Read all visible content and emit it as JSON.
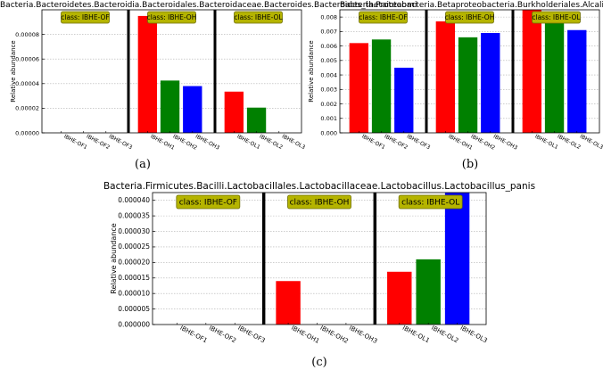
{
  "chart_data": [
    {
      "panel": "(a)",
      "type": "bar",
      "title": "Bacteria.Bacteroidetes.Bacteroidia.Bacteroidales.Bacteroidaceae.Bacteroides.Bacteroides_thetaiotaomi",
      "ylabel": "Relative abundance",
      "ylim": [
        0,
        0.0001
      ],
      "yticks": [
        "0.00000",
        "0.00002",
        "0.00004",
        "0.00006",
        "0.00008"
      ],
      "ytick_values": [
        0,
        2e-05,
        4e-05,
        6e-05,
        8e-05
      ],
      "groups": [
        {
          "label": "class: IBHE-OF",
          "categories": [
            "IBHE-OF1",
            "IBHE-OF2",
            "IBHE-OF3"
          ],
          "values": [
            0,
            0,
            0
          ]
        },
        {
          "label": "class: IBHE-OH",
          "categories": [
            "IBHE-OH1",
            "IBHE-OH2",
            "IBHE-OH3"
          ],
          "values": [
            9.5e-05,
            4.25e-05,
            3.8e-05
          ]
        },
        {
          "label": "class: IBHE-OL",
          "categories": [
            "IBHE-OL1",
            "IBHE-OL2",
            "IBHE-OL3"
          ],
          "values": [
            3.35e-05,
            2.05e-05,
            0
          ]
        }
      ]
    },
    {
      "panel": "(b)",
      "type": "bar",
      "title": "Bacteria.Proteobacteria.Betaproteobacteria.Burkholderiales.Alcaligenaceae.Sutterella",
      "ylabel": "Relative abundance",
      "ylim": [
        0,
        0.0085
      ],
      "yticks": [
        "0.000",
        "0.001",
        "0.002",
        "0.003",
        "0.004",
        "0.005",
        "0.006",
        "0.007",
        "0.008"
      ],
      "ytick_values": [
        0,
        0.001,
        0.002,
        0.003,
        0.004,
        0.005,
        0.006,
        0.007,
        0.008
      ],
      "groups": [
        {
          "label": "class: IBHE-OF",
          "categories": [
            "IBHE-OF1",
            "IBHE-OF2",
            "IBHE-OF3"
          ],
          "values": [
            0.0062,
            0.00645,
            0.0045
          ]
        },
        {
          "label": "class: IBHE-OH",
          "categories": [
            "IBHE-OH1",
            "IBHE-OH2",
            "IBHE-OH3"
          ],
          "values": [
            0.0077,
            0.0066,
            0.0069
          ]
        },
        {
          "label": "class: IBHE-OL",
          "categories": [
            "IBHE-OL1",
            "IBHE-OL2",
            "IBHE-OL3"
          ],
          "values": [
            0.0085,
            0.0078,
            0.0071
          ]
        }
      ]
    },
    {
      "panel": "(c)",
      "type": "bar",
      "title": "Bacteria.Firmicutes.Bacilli.Lactobacillales.Lactobacillaceae.Lactobacillus.Lactobacillus_panis",
      "ylabel": "Relative abundance",
      "ylim": [
        0,
        4.25e-05
      ],
      "yticks": [
        "0.000000",
        "0.000005",
        "0.000010",
        "0.000015",
        "0.000020",
        "0.000025",
        "0.000030",
        "0.000035",
        "0.000040"
      ],
      "ytick_values": [
        0,
        5e-06,
        1e-05,
        1.5e-05,
        2e-05,
        2.5e-05,
        3e-05,
        3.5e-05,
        4e-05
      ],
      "groups": [
        {
          "label": "class: IBHE-OF",
          "categories": [
            "IBHE-OF1",
            "IBHE-OF2",
            "IBHE-OF3"
          ],
          "values": [
            0,
            0,
            0
          ]
        },
        {
          "label": "class: IBHE-OH",
          "categories": [
            "IBHE-OH1",
            "IBHE-OH2",
            "IBHE-OH3"
          ],
          "values": [
            1.4e-05,
            0,
            0
          ]
        },
        {
          "label": "class: IBHE-OL",
          "categories": [
            "IBHE-OL1",
            "IBHE-OL2",
            "IBHE-OL3"
          ],
          "values": [
            1.7e-05,
            2.1e-05,
            4.25e-05
          ]
        }
      ]
    }
  ],
  "colors": {
    "bar1": "#ff0000",
    "bar2": "#008000",
    "bar3": "#0000ff",
    "badge": "#b5b400",
    "badge_border": "#6e6e00"
  }
}
